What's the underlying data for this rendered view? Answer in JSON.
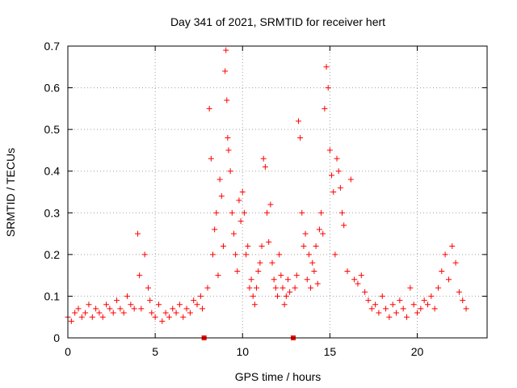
{
  "chart_data": {
    "type": "scatter",
    "title": "Day 341 of 2021, SRMTID for receiver hert",
    "xlabel": "GPS time / hours",
    "ylabel": "SRMTID / TECUs",
    "xlim": [
      0,
      24
    ],
    "ylim": [
      0,
      0.7
    ],
    "xticks": [
      "0",
      "5",
      "10",
      "15",
      "20"
    ],
    "yticks": [
      "0",
      "0.1",
      "0.2",
      "0.3",
      "0.4",
      "0.5",
      "0.6",
      "0.7"
    ],
    "grid": true,
    "marker": "plus",
    "color": "#ff0000",
    "gap_markers_x": [
      7.8,
      12.9
    ],
    "series": [
      {
        "name": "SRMTID",
        "x": [
          0.0,
          0.2,
          0.4,
          0.6,
          0.8,
          1.0,
          1.2,
          1.4,
          1.6,
          1.8,
          2.0,
          2.2,
          2.4,
          2.6,
          2.8,
          3.0,
          3.2,
          3.4,
          3.6,
          3.8,
          4.0,
          4.1,
          4.2,
          4.4,
          4.6,
          4.7,
          4.8,
          5.0,
          5.2,
          5.4,
          5.6,
          5.8,
          6.0,
          6.2,
          6.4,
          6.6,
          6.8,
          7.0,
          7.2,
          7.4,
          7.6,
          7.7,
          8.0,
          8.1,
          8.2,
          8.3,
          8.4,
          8.5,
          8.6,
          8.7,
          8.8,
          8.9,
          9.0,
          9.05,
          9.1,
          9.15,
          9.2,
          9.3,
          9.4,
          9.5,
          9.6,
          9.7,
          9.8,
          9.9,
          10.0,
          10.1,
          10.2,
          10.3,
          10.4,
          10.5,
          10.6,
          10.7,
          10.8,
          10.9,
          11.0,
          11.1,
          11.2,
          11.3,
          11.4,
          11.5,
          11.6,
          11.7,
          11.8,
          11.9,
          12.0,
          12.1,
          12.2,
          12.3,
          12.4,
          12.5,
          12.6,
          12.7,
          13.0,
          13.1,
          13.2,
          13.3,
          13.4,
          13.5,
          13.6,
          13.7,
          13.8,
          13.9,
          14.0,
          14.1,
          14.2,
          14.3,
          14.4,
          14.5,
          14.6,
          14.7,
          14.8,
          14.9,
          15.0,
          15.1,
          15.2,
          15.3,
          15.4,
          15.5,
          15.6,
          15.7,
          15.8,
          16.0,
          16.2,
          16.4,
          16.6,
          16.8,
          17.0,
          17.2,
          17.4,
          17.6,
          17.8,
          18.0,
          18.2,
          18.4,
          18.6,
          18.8,
          19.0,
          19.2,
          19.4,
          19.6,
          19.8,
          20.0,
          20.2,
          20.4,
          20.6,
          20.8,
          21.0,
          21.2,
          21.4,
          21.6,
          21.8,
          22.0,
          22.2,
          22.4,
          22.6,
          22.8
        ],
        "y": [
          0.05,
          0.04,
          0.06,
          0.07,
          0.05,
          0.06,
          0.08,
          0.05,
          0.07,
          0.06,
          0.05,
          0.08,
          0.07,
          0.06,
          0.09,
          0.07,
          0.06,
          0.1,
          0.08,
          0.07,
          0.25,
          0.15,
          0.07,
          0.2,
          0.12,
          0.09,
          0.06,
          0.05,
          0.08,
          0.04,
          0.06,
          0.05,
          0.07,
          0.06,
          0.08,
          0.05,
          0.07,
          0.06,
          0.09,
          0.08,
          0.1,
          0.07,
          0.12,
          0.55,
          0.43,
          0.2,
          0.26,
          0.3,
          0.15,
          0.38,
          0.34,
          0.22,
          0.64,
          0.69,
          0.57,
          0.48,
          0.45,
          0.4,
          0.3,
          0.25,
          0.2,
          0.16,
          0.33,
          0.28,
          0.35,
          0.3,
          0.2,
          0.22,
          0.12,
          0.14,
          0.1,
          0.08,
          0.12,
          0.16,
          0.18,
          0.22,
          0.43,
          0.41,
          0.3,
          0.23,
          0.32,
          0.18,
          0.14,
          0.12,
          0.1,
          0.2,
          0.15,
          0.12,
          0.08,
          0.1,
          0.14,
          0.11,
          0.12,
          0.15,
          0.52,
          0.48,
          0.3,
          0.22,
          0.25,
          0.14,
          0.2,
          0.12,
          0.18,
          0.16,
          0.22,
          0.13,
          0.26,
          0.3,
          0.25,
          0.55,
          0.65,
          0.6,
          0.45,
          0.39,
          0.35,
          0.2,
          0.43,
          0.4,
          0.36,
          0.3,
          0.27,
          0.16,
          0.38,
          0.14,
          0.13,
          0.15,
          0.11,
          0.09,
          0.07,
          0.08,
          0.06,
          0.1,
          0.07,
          0.05,
          0.08,
          0.06,
          0.09,
          0.07,
          0.05,
          0.12,
          0.08,
          0.06,
          0.07,
          0.09,
          0.08,
          0.1,
          0.07,
          0.12,
          0.16,
          0.2,
          0.14,
          0.22,
          0.18,
          0.11,
          0.09,
          0.07
        ]
      }
    ]
  }
}
